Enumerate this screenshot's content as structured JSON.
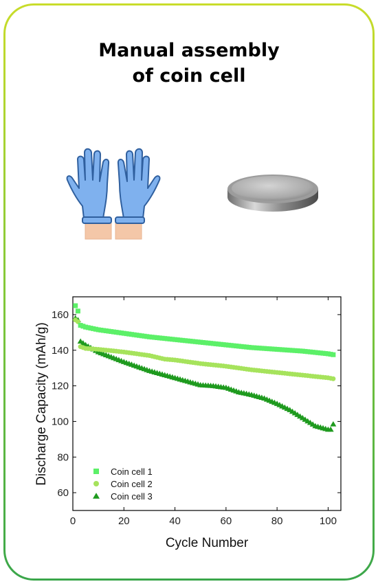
{
  "heading": {
    "line1": "Manual assembly",
    "line2": "of coin cell"
  },
  "icons": {
    "left": "gloved-hands-icon",
    "right": "coin-cell-battery-icon"
  },
  "colors": {
    "series1": "#5cf068",
    "series2": "#a6e35c",
    "series3": "#1e9a1e",
    "glove": "#6fa6e8",
    "frame_top": "#c8dc2a",
    "frame_bottom": "#3aa64a"
  },
  "chart_data": {
    "type": "scatter",
    "xlabel": "Cycle Number",
    "ylabel": "Discharge Capacity (mAh/g)",
    "xlim": [
      0,
      105
    ],
    "ylim": [
      50,
      170
    ],
    "xticks": [
      0,
      20,
      40,
      60,
      80,
      100
    ],
    "yticks": [
      60,
      80,
      100,
      120,
      140,
      160
    ],
    "grid": false,
    "legend_position": "bottom-left",
    "series": [
      {
        "name": "Coin cell 1",
        "marker": "square",
        "points": [
          [
            1,
            165
          ],
          [
            2,
            162
          ],
          [
            3,
            154
          ],
          [
            5,
            153
          ],
          [
            10,
            151.5
          ],
          [
            20,
            149.5
          ],
          [
            30,
            147.5
          ],
          [
            40,
            146
          ],
          [
            50,
            144.5
          ],
          [
            60,
            143
          ],
          [
            70,
            141.5
          ],
          [
            80,
            140.5
          ],
          [
            90,
            139.5
          ],
          [
            100,
            138
          ],
          [
            102,
            137.5
          ]
        ]
      },
      {
        "name": "Coin cell 2",
        "marker": "circle",
        "points": [
          [
            1,
            157
          ],
          [
            2,
            156
          ],
          [
            3,
            142
          ],
          [
            5,
            141
          ],
          [
            10,
            140.5
          ],
          [
            20,
            139
          ],
          [
            30,
            137
          ],
          [
            36,
            135
          ],
          [
            40,
            134.5
          ],
          [
            50,
            132.5
          ],
          [
            60,
            131
          ],
          [
            70,
            129
          ],
          [
            80,
            127.5
          ],
          [
            90,
            126
          ],
          [
            100,
            124.5
          ],
          [
            102,
            124
          ]
        ]
      },
      {
        "name": "Coin cell 3",
        "marker": "triangle",
        "points": [
          [
            1,
            158
          ],
          [
            2,
            157
          ],
          [
            3,
            145
          ],
          [
            5,
            143
          ],
          [
            10,
            139
          ],
          [
            20,
            133.5
          ],
          [
            30,
            128.5
          ],
          [
            40,
            124.5
          ],
          [
            50,
            120.5
          ],
          [
            55,
            120
          ],
          [
            60,
            119
          ],
          [
            65,
            116.5
          ],
          [
            70,
            115
          ],
          [
            75,
            113
          ],
          [
            80,
            110
          ],
          [
            85,
            106.5
          ],
          [
            90,
            102
          ],
          [
            95,
            97.5
          ],
          [
            100,
            95.5
          ],
          [
            101,
            95.5
          ],
          [
            102,
            98.5
          ]
        ]
      }
    ]
  }
}
